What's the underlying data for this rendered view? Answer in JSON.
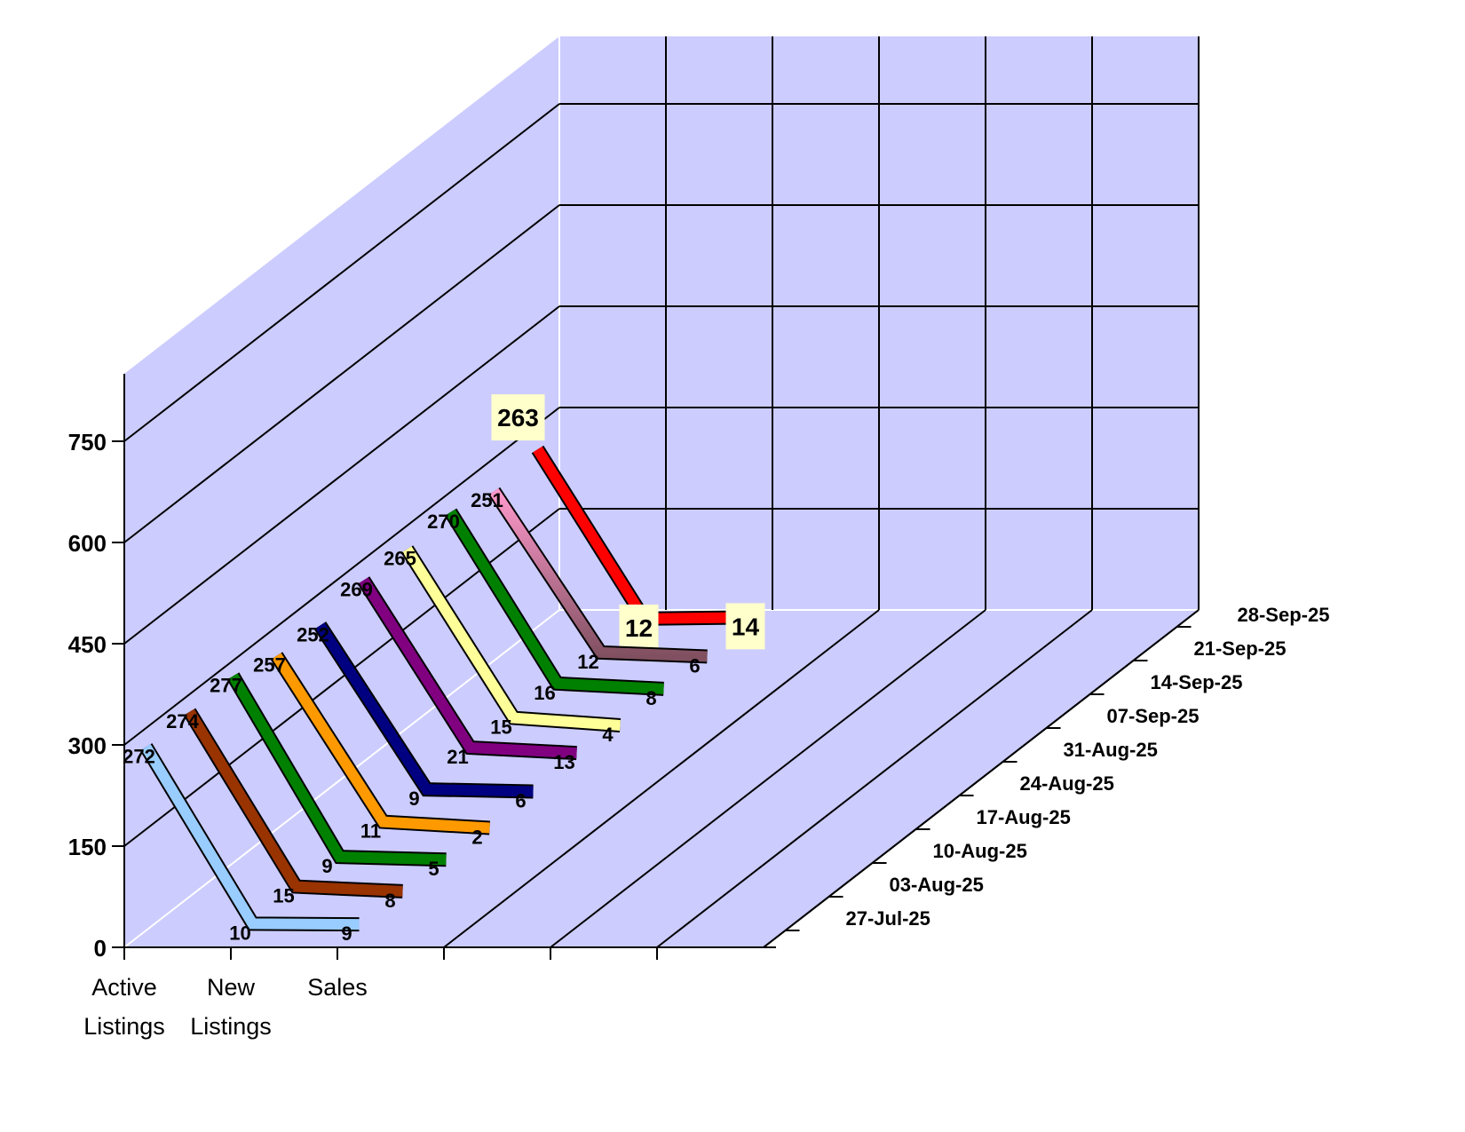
{
  "chart_data": {
    "type": "line",
    "style": "3d-ribbon",
    "title": "",
    "categories": [
      "Active Listings",
      "New Listings",
      "Sales"
    ],
    "category_lines": [
      [
        "Active",
        "Listings"
      ],
      [
        "New",
        "Listings"
      ],
      [
        "Sales",
        ""
      ]
    ],
    "y_ticks": [
      "0",
      "150",
      "300",
      "450",
      "600",
      "750"
    ],
    "ylim": [
      0,
      850
    ],
    "grid": true,
    "series": [
      {
        "name": "27-Jul-25",
        "values": [
          272,
          10,
          9
        ],
        "color": "#99ccff"
      },
      {
        "name": "03-Aug-25",
        "values": [
          274,
          15,
          8
        ],
        "color": "#993300"
      },
      {
        "name": "10-Aug-25",
        "values": [
          277,
          9,
          5
        ],
        "color": "#008000"
      },
      {
        "name": "17-Aug-25",
        "values": [
          257,
          11,
          2
        ],
        "color": "#ff9900"
      },
      {
        "name": "24-Aug-25",
        "values": [
          252,
          9,
          6
        ],
        "color": "#000080"
      },
      {
        "name": "31-Aug-25",
        "values": [
          269,
          21,
          13
        ],
        "color": "#800080"
      },
      {
        "name": "07-Sep-25",
        "values": [
          265,
          15,
          4
        ],
        "color": "#ffff99"
      },
      {
        "name": "14-Sep-25",
        "values": [
          270,
          16,
          8
        ],
        "color": "#008000"
      },
      {
        "name": "21-Sep-25",
        "values": [
          251,
          12,
          6
        ],
        "color": "#ff99cc"
      },
      {
        "name": "28-Sep-25",
        "values": [
          263,
          12,
          14
        ],
        "color": "#ff0000",
        "highlighted": true
      }
    ],
    "wall_color": "#ccccff",
    "highlight_label_color": "#ffffcc"
  }
}
